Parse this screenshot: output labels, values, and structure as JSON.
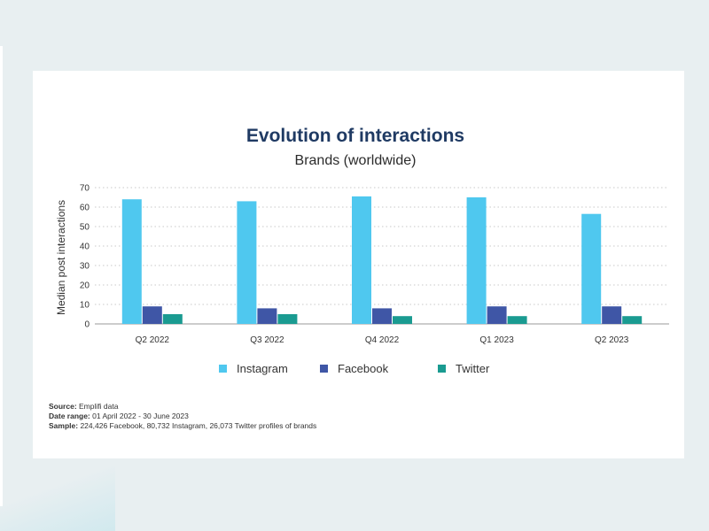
{
  "chart_data": {
    "type": "bar",
    "title": "Evolution of interactions",
    "subtitle": "Brands (worldwide)",
    "xlabel": "",
    "ylabel": "Median post interactions",
    "ylim": [
      0,
      70
    ],
    "yticks": [
      0,
      10,
      20,
      30,
      40,
      50,
      60,
      70
    ],
    "grid": true,
    "legend_position": "bottom",
    "categories": [
      "Q2 2022",
      "Q3 2022",
      "Q4 2022",
      "Q1 2023",
      "Q2 2023"
    ],
    "series": [
      {
        "name": "Instagram",
        "color": "#4fc8ef",
        "values": [
          64,
          63,
          65.5,
          65,
          56.5
        ]
      },
      {
        "name": "Facebook",
        "color": "#3f56a6",
        "values": [
          9,
          8,
          8,
          9,
          9
        ]
      },
      {
        "name": "Twitter",
        "color": "#1a9b91",
        "values": [
          5,
          5,
          4,
          4,
          4
        ]
      }
    ]
  },
  "notes": {
    "source_label": "Source:",
    "source_value": " Emplifi data",
    "range_label": "Date range:",
    "range_value": " 01 April 2022 - 30 June 2023",
    "sample_label": "Sample:",
    "sample_value": " 224,426 Facebook, 80,732 Instagram, 26,073 Twitter profiles of brands"
  }
}
